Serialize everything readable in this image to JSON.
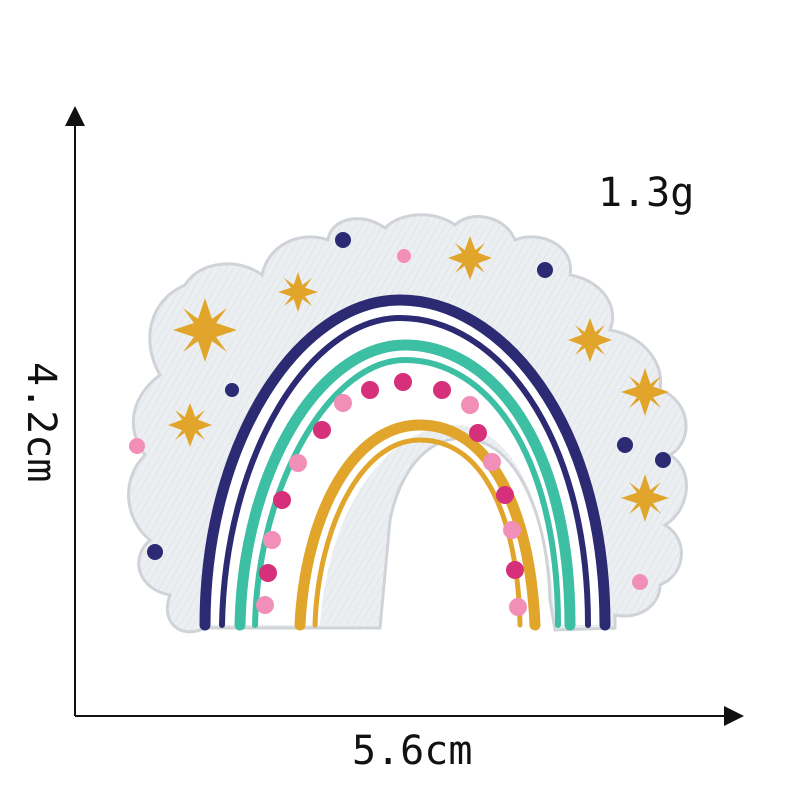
{
  "labels": {
    "weight": "1.3g",
    "width": "5.6cm",
    "height": "4.2cm"
  },
  "colors": {
    "background": "#ffffff",
    "patch": "#e9ecef",
    "patch_edge": "#d3d6d9",
    "navy": "#2c2a72",
    "teal": "#3dbfa4",
    "mustard": "#e0a52a",
    "pink": "#f28fb8",
    "magenta": "#d6307a",
    "axis": "#111111"
  },
  "image": {
    "subject": "embroidered-rainbow-patch",
    "icons": [
      "rainbow-icon",
      "star-icon",
      "dot-icon",
      "arrow-icon"
    ]
  }
}
